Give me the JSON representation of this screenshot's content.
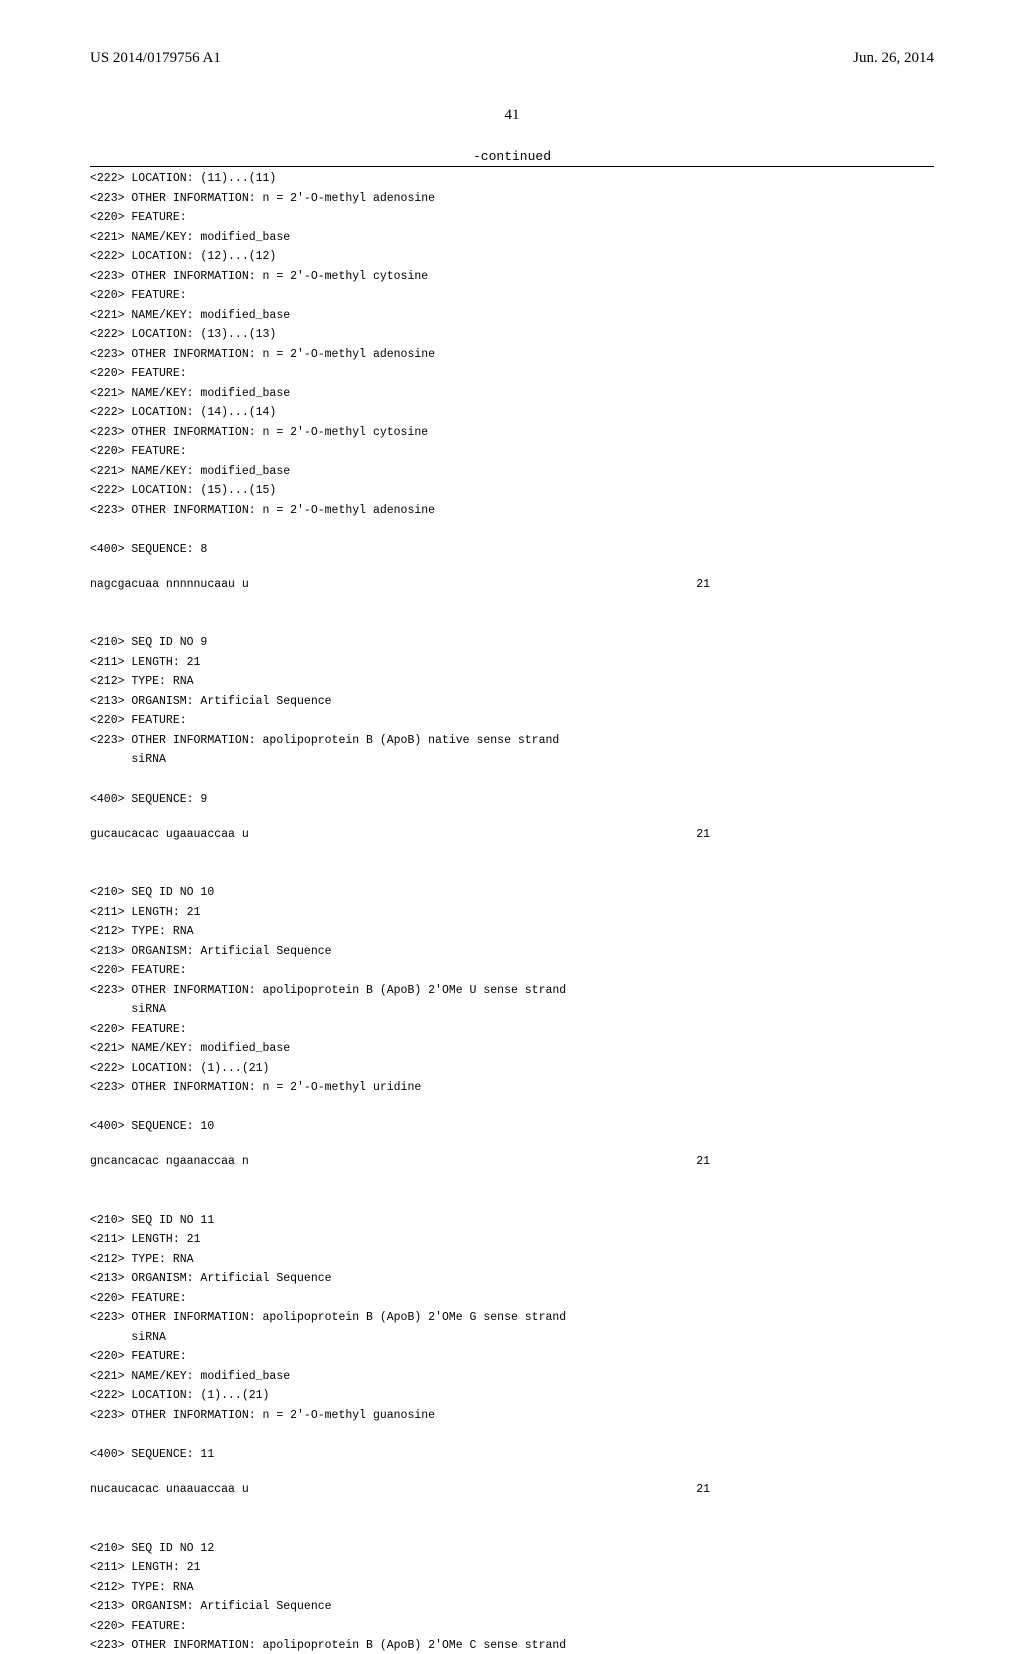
{
  "header": {
    "pub_number": "US 2014/0179756 A1",
    "pub_date": "Jun. 26, 2014"
  },
  "page_number": "41",
  "continued_label": "-continued",
  "blocks": [
    {
      "type": "rule"
    },
    {
      "type": "line",
      "text": "<222> LOCATION: (11)...(11)"
    },
    {
      "type": "line",
      "text": "<223> OTHER INFORMATION: n = 2'-O-methyl adenosine"
    },
    {
      "type": "line",
      "text": "<220> FEATURE:"
    },
    {
      "type": "line",
      "text": "<221> NAME/KEY: modified_base"
    },
    {
      "type": "line",
      "text": "<222> LOCATION: (12)...(12)"
    },
    {
      "type": "line",
      "text": "<223> OTHER INFORMATION: n = 2'-O-methyl cytosine"
    },
    {
      "type": "line",
      "text": "<220> FEATURE:"
    },
    {
      "type": "line",
      "text": "<221> NAME/KEY: modified_base"
    },
    {
      "type": "line",
      "text": "<222> LOCATION: (13)...(13)"
    },
    {
      "type": "line",
      "text": "<223> OTHER INFORMATION: n = 2'-O-methyl adenosine"
    },
    {
      "type": "line",
      "text": "<220> FEATURE:"
    },
    {
      "type": "line",
      "text": "<221> NAME/KEY: modified_base"
    },
    {
      "type": "line",
      "text": "<222> LOCATION: (14)...(14)"
    },
    {
      "type": "line",
      "text": "<223> OTHER INFORMATION: n = 2'-O-methyl cytosine"
    },
    {
      "type": "line",
      "text": "<220> FEATURE:"
    },
    {
      "type": "line",
      "text": "<221> NAME/KEY: modified_base"
    },
    {
      "type": "line",
      "text": "<222> LOCATION: (15)...(15)"
    },
    {
      "type": "line",
      "text": "<223> OTHER INFORMATION: n = 2'-O-methyl adenosine"
    },
    {
      "type": "blank"
    },
    {
      "type": "line",
      "text": "<400> SEQUENCE: 8"
    },
    {
      "type": "blank"
    },
    {
      "type": "seq",
      "seq": "nagcgacuaa nnnnnucaau u",
      "len": "21"
    },
    {
      "type": "blank"
    },
    {
      "type": "blank"
    },
    {
      "type": "line",
      "text": "<210> SEQ ID NO 9"
    },
    {
      "type": "line",
      "text": "<211> LENGTH: 21"
    },
    {
      "type": "line",
      "text": "<212> TYPE: RNA"
    },
    {
      "type": "line",
      "text": "<213> ORGANISM: Artificial Sequence"
    },
    {
      "type": "line",
      "text": "<220> FEATURE:"
    },
    {
      "type": "line",
      "text": "<223> OTHER INFORMATION: apolipoprotein B (ApoB) native sense strand"
    },
    {
      "type": "line",
      "text": "      siRNA"
    },
    {
      "type": "blank"
    },
    {
      "type": "line",
      "text": "<400> SEQUENCE: 9"
    },
    {
      "type": "blank"
    },
    {
      "type": "seq",
      "seq": "gucaucacac ugaauaccaa u",
      "len": "21"
    },
    {
      "type": "blank"
    },
    {
      "type": "blank"
    },
    {
      "type": "line",
      "text": "<210> SEQ ID NO 10"
    },
    {
      "type": "line",
      "text": "<211> LENGTH: 21"
    },
    {
      "type": "line",
      "text": "<212> TYPE: RNA"
    },
    {
      "type": "line",
      "text": "<213> ORGANISM: Artificial Sequence"
    },
    {
      "type": "line",
      "text": "<220> FEATURE:"
    },
    {
      "type": "line",
      "text": "<223> OTHER INFORMATION: apolipoprotein B (ApoB) 2'OMe U sense strand"
    },
    {
      "type": "line",
      "text": "      siRNA"
    },
    {
      "type": "line",
      "text": "<220> FEATURE:"
    },
    {
      "type": "line",
      "text": "<221> NAME/KEY: modified_base"
    },
    {
      "type": "line",
      "text": "<222> LOCATION: (1)...(21)"
    },
    {
      "type": "line",
      "text": "<223> OTHER INFORMATION: n = 2'-O-methyl uridine"
    },
    {
      "type": "blank"
    },
    {
      "type": "line",
      "text": "<400> SEQUENCE: 10"
    },
    {
      "type": "blank"
    },
    {
      "type": "seq",
      "seq": "gncancacac ngaanaccaa n",
      "len": "21"
    },
    {
      "type": "blank"
    },
    {
      "type": "blank"
    },
    {
      "type": "line",
      "text": "<210> SEQ ID NO 11"
    },
    {
      "type": "line",
      "text": "<211> LENGTH: 21"
    },
    {
      "type": "line",
      "text": "<212> TYPE: RNA"
    },
    {
      "type": "line",
      "text": "<213> ORGANISM: Artificial Sequence"
    },
    {
      "type": "line",
      "text": "<220> FEATURE:"
    },
    {
      "type": "line",
      "text": "<223> OTHER INFORMATION: apolipoprotein B (ApoB) 2'OMe G sense strand"
    },
    {
      "type": "line",
      "text": "      siRNA"
    },
    {
      "type": "line",
      "text": "<220> FEATURE:"
    },
    {
      "type": "line",
      "text": "<221> NAME/KEY: modified_base"
    },
    {
      "type": "line",
      "text": "<222> LOCATION: (1)...(21)"
    },
    {
      "type": "line",
      "text": "<223> OTHER INFORMATION: n = 2'-O-methyl guanosine"
    },
    {
      "type": "blank"
    },
    {
      "type": "line",
      "text": "<400> SEQUENCE: 11"
    },
    {
      "type": "blank"
    },
    {
      "type": "seq",
      "seq": "nucaucacac unaauaccaa u",
      "len": "21"
    },
    {
      "type": "blank"
    },
    {
      "type": "blank"
    },
    {
      "type": "line",
      "text": "<210> SEQ ID NO 12"
    },
    {
      "type": "line",
      "text": "<211> LENGTH: 21"
    },
    {
      "type": "line",
      "text": "<212> TYPE: RNA"
    },
    {
      "type": "line",
      "text": "<213> ORGANISM: Artificial Sequence"
    },
    {
      "type": "line",
      "text": "<220> FEATURE:"
    },
    {
      "type": "line",
      "text": "<223> OTHER INFORMATION: apolipoprotein B (ApoB) 2'OMe C sense strand"
    }
  ]
}
